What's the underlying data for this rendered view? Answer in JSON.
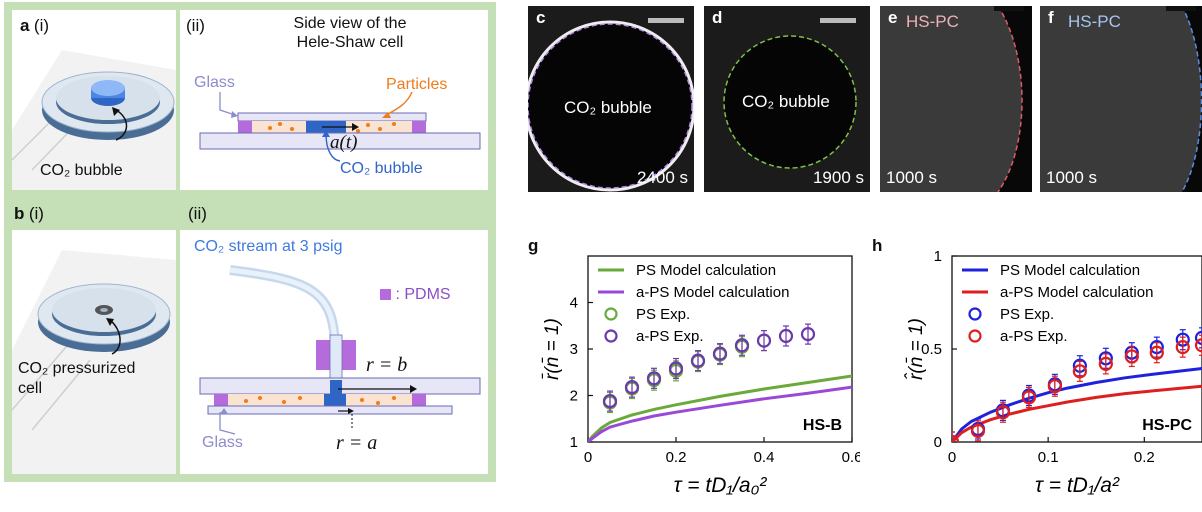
{
  "panel_a": {
    "label": "a",
    "sub_i": "(i)",
    "sub_ii": "(ii)",
    "title_line1": "Side view of the",
    "title_line2": "Hele-Shaw cell",
    "glass": "Glass",
    "particles": "Particles",
    "bubble_caption": "CO₂ bubble",
    "radius_label": "a(t)",
    "bubble_label": "CO₂ bubble"
  },
  "panel_b": {
    "label": "b",
    "sub_i": "(i)",
    "sub_ii": "(ii)",
    "stream": "CO₂ stream at 3 psig",
    "pdms": ": PDMS",
    "cell_caption_1": "CO₂ pressurized",
    "cell_caption_2": "cell",
    "r_b": "r = b",
    "r_a": "r = a",
    "glass": "Glass"
  },
  "micrographs": [
    {
      "label": "c",
      "inner": "CO₂ bubble",
      "time": "2400 s",
      "bar_color": "#bbbbbb"
    },
    {
      "label": "d",
      "inner": "CO₂ bubble",
      "time": "1900 s",
      "bar_color": "#bbbbbb"
    },
    {
      "label": "e",
      "inner": "HS-PC",
      "time": "1000 s",
      "bar_color": "#111111"
    },
    {
      "label": "f",
      "inner": "HS-PC",
      "time": "1000 s",
      "bar_color": "#111111"
    }
  ],
  "chart_data": [
    {
      "panel": "g",
      "type": "line",
      "ylabel": "r̄(n̄ = 1)",
      "xlabel": "τ = tD₁/a₀²",
      "xlim": [
        0,
        0.6
      ],
      "ylim": [
        1,
        5
      ],
      "xticks": [
        "0",
        "0.2",
        "0.4",
        "0.6"
      ],
      "yticks": [
        "1",
        "2",
        "3",
        "4"
      ],
      "annotation": "HS-B",
      "legend": [
        "PS Model calculation",
        "a-PS Model calculation",
        "PS Exp.",
        "a-PS Exp."
      ],
      "series": [
        {
          "name": "PS Model calculation",
          "style": "line",
          "color": "#6aaa3c",
          "x": [
            0,
            0.01,
            0.03,
            0.05,
            0.1,
            0.15,
            0.2,
            0.3,
            0.4,
            0.5,
            0.6
          ],
          "y": [
            1,
            1.12,
            1.3,
            1.42,
            1.58,
            1.7,
            1.8,
            1.98,
            2.14,
            2.28,
            2.42
          ]
        },
        {
          "name": "a-PS Model calculation",
          "style": "line",
          "color": "#9a48d8",
          "x": [
            0,
            0.01,
            0.03,
            0.05,
            0.1,
            0.15,
            0.2,
            0.3,
            0.4,
            0.5,
            0.6
          ],
          "y": [
            1,
            1.08,
            1.22,
            1.32,
            1.45,
            1.56,
            1.64,
            1.79,
            1.93,
            2.05,
            2.18
          ]
        },
        {
          "name": "PS Exp.",
          "style": "markers",
          "color": "#6aaa3c",
          "x": [
            0.05,
            0.1,
            0.15,
            0.2,
            0.25,
            0.3,
            0.35
          ],
          "y": [
            1.85,
            2.15,
            2.33,
            2.53,
            2.73,
            2.88,
            3.05
          ]
        },
        {
          "name": "a-PS Exp.",
          "style": "markers",
          "color": "#6a3aaa",
          "x": [
            0.05,
            0.1,
            0.15,
            0.2,
            0.25,
            0.3,
            0.35,
            0.4,
            0.45,
            0.5
          ],
          "y": [
            1.88,
            2.18,
            2.37,
            2.58,
            2.75,
            2.9,
            3.08,
            3.18,
            3.28,
            3.32
          ]
        }
      ]
    },
    {
      "panel": "h",
      "type": "line",
      "ylabel": "r̂(n̄ = 1)",
      "xlabel": "τ = tD₁/a²",
      "xlim": [
        0,
        0.26
      ],
      "ylim": [
        0,
        1
      ],
      "xticks": [
        "0",
        "0.1",
        "0.2"
      ],
      "yticks": [
        "0",
        "0.5",
        "1"
      ],
      "annotation": "HS-PC",
      "legend": [
        "PS Model calculation",
        "a-PS Model calculation",
        "PS Exp.",
        "a-PS Exp."
      ],
      "series": [
        {
          "name": "PS Model calculation",
          "style": "line",
          "color": "#1f22dd",
          "x": [
            0,
            0.01,
            0.02,
            0.04,
            0.06,
            0.08,
            0.1,
            0.12,
            0.15,
            0.18,
            0.21,
            0.26
          ],
          "y": [
            0,
            0.07,
            0.11,
            0.16,
            0.2,
            0.235,
            0.265,
            0.29,
            0.32,
            0.345,
            0.365,
            0.395
          ]
        },
        {
          "name": "a-PS Model calculation",
          "style": "line",
          "color": "#dd1f1f",
          "x": [
            0,
            0.01,
            0.02,
            0.04,
            0.06,
            0.08,
            0.1,
            0.12,
            0.15,
            0.18,
            0.21,
            0.26
          ],
          "y": [
            0,
            0.05,
            0.08,
            0.12,
            0.15,
            0.175,
            0.195,
            0.215,
            0.24,
            0.26,
            0.275,
            0.3
          ]
        },
        {
          "name": "PS Exp.",
          "style": "markers",
          "color": "#1f22dd",
          "x": [
            0,
            0.027,
            0.053,
            0.08,
            0.107,
            0.133,
            0.16,
            0.187,
            0.213,
            0.24,
            0.26
          ],
          "y": [
            0,
            0.07,
            0.17,
            0.25,
            0.31,
            0.41,
            0.45,
            0.48,
            0.51,
            0.55,
            0.56
          ]
        },
        {
          "name": "a-PS Exp.",
          "style": "markers",
          "color": "#dd1f1f",
          "x": [
            0,
            0.027,
            0.053,
            0.08,
            0.107,
            0.133,
            0.16,
            0.187,
            0.213,
            0.24,
            0.26
          ],
          "y": [
            0,
            0.06,
            0.16,
            0.24,
            0.3,
            0.38,
            0.42,
            0.46,
            0.48,
            0.51,
            0.52
          ]
        }
      ]
    }
  ]
}
